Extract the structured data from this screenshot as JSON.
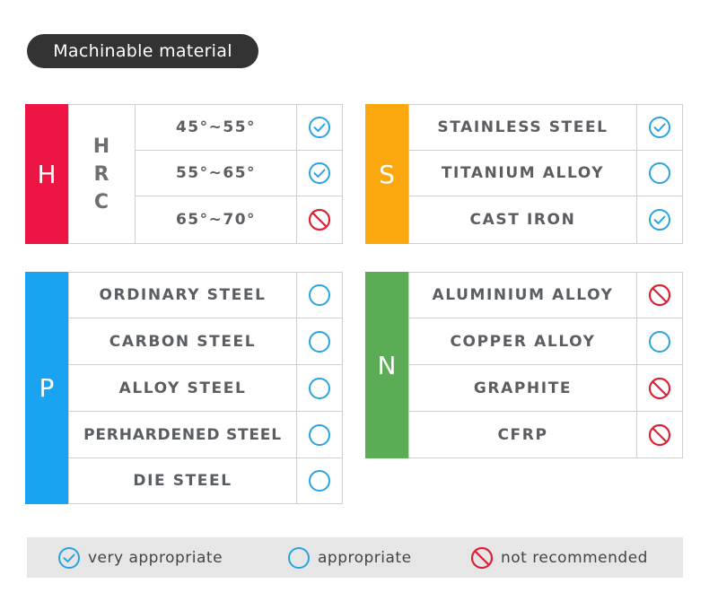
{
  "title": "Machinable material",
  "colors": {
    "H": "#ec1543",
    "S": "#fba80f",
    "P": "#1aa3f1",
    "N": "#5aad55",
    "ok_blue": "#29a3e0",
    "no_red": "#d92236"
  },
  "groups": {
    "H": {
      "letter": "H",
      "sub_label": "HRC",
      "rows": [
        {
          "label": "45°~55°",
          "status": "very-appropriate"
        },
        {
          "label": "55°~65°",
          "status": "very-appropriate"
        },
        {
          "label": "65°~70°",
          "status": "not-recommended"
        }
      ]
    },
    "S": {
      "letter": "S",
      "rows": [
        {
          "label": "STAINLESS STEEL",
          "status": "very-appropriate"
        },
        {
          "label": "TITANIUM ALLOY",
          "status": "appropriate"
        },
        {
          "label": "CAST IRON",
          "status": "very-appropriate"
        }
      ]
    },
    "P": {
      "letter": "P",
      "rows": [
        {
          "label": "ORDINARY STEEL",
          "status": "appropriate"
        },
        {
          "label": "CARBON STEEL",
          "status": "appropriate"
        },
        {
          "label": "ALLOY STEEL",
          "status": "appropriate"
        },
        {
          "label": "PERHARDENED STEEL",
          "status": "appropriate"
        },
        {
          "label": "DIE STEEL",
          "status": "appropriate"
        }
      ]
    },
    "N": {
      "letter": "N",
      "rows": [
        {
          "label": "ALUMINIUM ALLOY",
          "status": "not-recommended"
        },
        {
          "label": "COPPER ALLOY",
          "status": "appropriate"
        },
        {
          "label": "GRAPHITE",
          "status": "not-recommended"
        },
        {
          "label": "CFRP",
          "status": "not-recommended"
        }
      ]
    }
  },
  "legend": {
    "very_appropriate": "very appropriate",
    "appropriate": "appropriate",
    "not_recommended": "not recommended"
  }
}
